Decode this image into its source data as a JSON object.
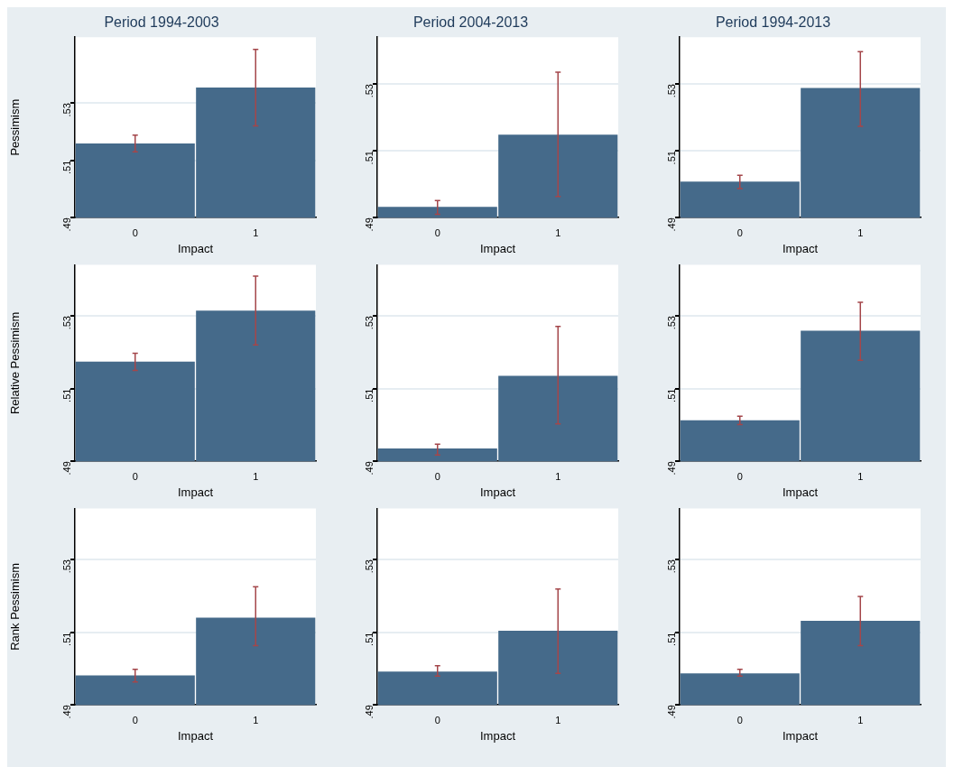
{
  "chart_data": [
    {
      "type": "bar",
      "title": "Period 1994-2003",
      "ylabel": "Pessimism",
      "xlabel": "Impact",
      "categories": [
        "0",
        "1"
      ],
      "values": [
        0.5159,
        0.5354
      ],
      "errors": [
        [
          0.513,
          0.5188
        ],
        [
          0.522,
          0.5487
        ]
      ],
      "color": "#456a8a",
      "ylim": [
        0.49,
        0.553
      ],
      "yticks": [
        {
          "value": 0.49,
          "label": ".49"
        },
        {
          "value": 0.51,
          "label": ".51"
        },
        {
          "value": 0.53,
          "label": ".53"
        }
      ],
      "grid": "y"
    },
    {
      "type": "bar",
      "title": "Period 2004-2013",
      "xlabel": "Impact",
      "categories": [
        "0",
        "1"
      ],
      "values": [
        0.4932,
        0.5148
      ],
      "errors": [
        [
          0.491,
          0.4951
        ],
        [
          0.4963,
          0.5335
        ]
      ],
      "color": "#456a8a",
      "ylim": [
        0.49,
        0.544
      ],
      "yticks": [
        {
          "value": 0.49,
          "label": ".49"
        },
        {
          "value": 0.51,
          "label": ".51"
        },
        {
          "value": 0.53,
          "label": ".53"
        }
      ],
      "grid": "y"
    },
    {
      "type": "bar",
      "title": "Period 1994-2013",
      "xlabel": "Impact",
      "categories": [
        "0",
        "1"
      ],
      "values": [
        0.5008,
        0.5288
      ],
      "errors": [
        [
          0.4987,
          0.5027
        ],
        [
          0.5173,
          0.5397
        ]
      ],
      "color": "#456a8a",
      "ylim": [
        0.49,
        0.544
      ],
      "yticks": [
        {
          "value": 0.49,
          "label": ".49"
        },
        {
          "value": 0.51,
          "label": ".51"
        },
        {
          "value": 0.53,
          "label": ".53"
        }
      ],
      "grid": "y"
    },
    {
      "type": "bar",
      "ylabel": "Relative Pessimism",
      "xlabel": "Impact",
      "categories": [
        "0",
        "1"
      ],
      "values": [
        0.5174,
        0.5314
      ],
      "errors": [
        [
          0.515,
          0.5197
        ],
        [
          0.522,
          0.5409
        ]
      ],
      "color": "#456a8a",
      "ylim": [
        0.49,
        0.544
      ],
      "yticks": [
        {
          "value": 0.49,
          "label": ".49"
        },
        {
          "value": 0.51,
          "label": ".51"
        },
        {
          "value": 0.53,
          "label": ".53"
        }
      ],
      "grid": "y"
    },
    {
      "type": "bar",
      "xlabel": "Impact",
      "categories": [
        "0",
        "1"
      ],
      "values": [
        0.4935,
        0.5135
      ],
      "errors": [
        [
          0.4917,
          0.4947
        ],
        [
          0.5003,
          0.5271
        ]
      ],
      "color": "#456a8a",
      "ylim": [
        0.49,
        0.544
      ],
      "yticks": [
        {
          "value": 0.49,
          "label": ".49"
        },
        {
          "value": 0.51,
          "label": ".51"
        },
        {
          "value": 0.53,
          "label": ".53"
        }
      ],
      "grid": "y"
    },
    {
      "type": "bar",
      "xlabel": "Impact",
      "categories": [
        "0",
        "1"
      ],
      "values": [
        0.5013,
        0.5259
      ],
      "errors": [
        [
          0.5001,
          0.5024
        ],
        [
          0.5178,
          0.5337
        ]
      ],
      "color": "#456a8a",
      "ylim": [
        0.49,
        0.544
      ],
      "yticks": [
        {
          "value": 0.49,
          "label": ".49"
        },
        {
          "value": 0.51,
          "label": ".51"
        },
        {
          "value": 0.53,
          "label": ".53"
        }
      ],
      "grid": "y"
    },
    {
      "type": "bar",
      "ylabel": "Rank Pessimism",
      "xlabel": "Impact",
      "categories": [
        "0",
        "1"
      ],
      "values": [
        0.4981,
        0.514
      ],
      "errors": [
        [
          0.4963,
          0.4998
        ],
        [
          0.5063,
          0.5225
        ]
      ],
      "color": "#456a8a",
      "ylim": [
        0.49,
        0.544
      ],
      "yticks": [
        {
          "value": 0.49,
          "label": ".49"
        },
        {
          "value": 0.51,
          "label": ".51"
        },
        {
          "value": 0.53,
          "label": ".53"
        }
      ],
      "grid": "y"
    },
    {
      "type": "bar",
      "xlabel": "Impact",
      "categories": [
        "0",
        "1"
      ],
      "values": [
        0.4992,
        0.5104
      ],
      "errors": [
        [
          0.4979,
          0.5008
        ],
        [
          0.4987,
          0.5219
        ]
      ],
      "color": "#456a8a",
      "ylim": [
        0.49,
        0.544
      ],
      "yticks": [
        {
          "value": 0.49,
          "label": ".49"
        },
        {
          "value": 0.51,
          "label": ".51"
        },
        {
          "value": 0.53,
          "label": ".53"
        }
      ],
      "grid": "y"
    },
    {
      "type": "bar",
      "xlabel": "Impact",
      "categories": [
        "0",
        "1"
      ],
      "values": [
        0.4987,
        0.5131
      ],
      "errors": [
        [
          0.4979,
          0.4998
        ],
        [
          0.5063,
          0.5198
        ]
      ],
      "color": "#456a8a",
      "ylim": [
        0.49,
        0.544
      ],
      "yticks": [
        {
          "value": 0.49,
          "label": ".49"
        },
        {
          "value": 0.51,
          "label": ".51"
        },
        {
          "value": 0.53,
          "label": ".53"
        }
      ],
      "grid": "y"
    }
  ]
}
